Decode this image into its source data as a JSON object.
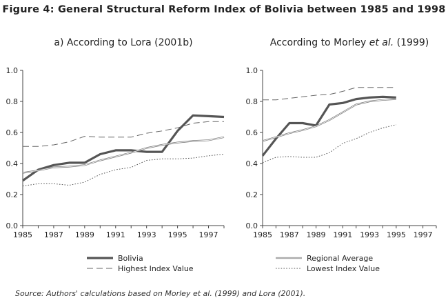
{
  "figure_title": "Figure 4: General Structural Reform Index of Bolivia between 1985 and 1998",
  "source_note": "Source: Authors' calculations based on Morley et al. (1999) and Lora (2001).",
  "chart_data": [
    {
      "type": "line",
      "title": "a) According to Lora (2001b)",
      "xlabel": "",
      "ylabel": "",
      "xlim": [
        1985,
        1998
      ],
      "ylim": [
        0.0,
        1.0
      ],
      "xticks": [
        "1985",
        "1987",
        "1989",
        "1991",
        "1993",
        "1995",
        "1997"
      ],
      "yticks": [
        "0.0",
        "0.2",
        "0.4",
        "0.6",
        "0.8",
        "1.0"
      ],
      "grid": false,
      "series": [
        {
          "name": "Bolivia",
          "style": "thick-solid",
          "x": [
            1985,
            1986,
            1987,
            1988,
            1989,
            1990,
            1991,
            1992,
            1993,
            1994,
            1995,
            1996,
            1997,
            1998
          ],
          "y": [
            0.29,
            0.36,
            0.39,
            0.405,
            0.405,
            0.46,
            0.485,
            0.485,
            0.475,
            0.475,
            0.61,
            0.71,
            0.705,
            0.7
          ]
        },
        {
          "name": "Highest Index Value",
          "style": "long-dash",
          "x": [
            1985,
            1986,
            1987,
            1988,
            1989,
            1990,
            1991,
            1992,
            1993,
            1994,
            1995,
            1996,
            1997,
            1998
          ],
          "y": [
            0.51,
            0.51,
            0.52,
            0.54,
            0.575,
            0.57,
            0.57,
            0.57,
            0.595,
            0.61,
            0.63,
            0.66,
            0.67,
            0.67
          ]
        },
        {
          "name": "Regional Average",
          "style": "double-thin",
          "x": [
            1985,
            1986,
            1987,
            1988,
            1989,
            1990,
            1991,
            1992,
            1993,
            1994,
            1995,
            1996,
            1997,
            1998
          ],
          "y": [
            0.34,
            0.355,
            0.375,
            0.38,
            0.39,
            0.42,
            0.445,
            0.47,
            0.5,
            0.52,
            0.535,
            0.545,
            0.55,
            0.57
          ]
        },
        {
          "name": "Lowest Index Value",
          "style": "dotted",
          "x": [
            1985,
            1986,
            1987,
            1988,
            1989,
            1990,
            1991,
            1992,
            1993,
            1994,
            1995,
            1996,
            1997,
            1998
          ],
          "y": [
            0.255,
            0.27,
            0.27,
            0.26,
            0.28,
            0.33,
            0.36,
            0.375,
            0.42,
            0.43,
            0.43,
            0.435,
            0.45,
            0.46
          ]
        }
      ]
    },
    {
      "type": "line",
      "title": "According to Morley et al. (1999)",
      "xlabel": "",
      "ylabel": "",
      "xlim": [
        1985,
        1998
      ],
      "ylim": [
        0.0,
        1.0
      ],
      "xticks": [
        "1985",
        "1987",
        "1989",
        "1991",
        "1993",
        "1995",
        "1997"
      ],
      "yticks": [
        "0.0",
        "0.2",
        "0.4",
        "0.6",
        "0.8",
        "1.0"
      ],
      "grid": false,
      "series": [
        {
          "name": "Bolivia",
          "style": "thick-solid",
          "x": [
            1985,
            1986,
            1987,
            1988,
            1989,
            1990,
            1991,
            1992,
            1993,
            1994,
            1995
          ],
          "y": [
            0.45,
            0.56,
            0.66,
            0.66,
            0.645,
            0.78,
            0.79,
            0.815,
            0.825,
            0.83,
            0.825
          ]
        },
        {
          "name": "Highest Index Value",
          "style": "long-dash",
          "x": [
            1985,
            1986,
            1987,
            1988,
            1989,
            1990,
            1991,
            1992,
            1993,
            1994,
            1995
          ],
          "y": [
            0.81,
            0.81,
            0.82,
            0.83,
            0.84,
            0.845,
            0.865,
            0.89,
            0.89,
            0.89,
            0.89
          ]
        },
        {
          "name": "Regional Average",
          "style": "double-thin",
          "x": [
            1985,
            1986,
            1987,
            1988,
            1989,
            1990,
            1991,
            1992,
            1993,
            1994,
            1995
          ],
          "y": [
            0.545,
            0.57,
            0.595,
            0.615,
            0.64,
            0.68,
            0.73,
            0.78,
            0.8,
            0.81,
            0.815
          ]
        },
        {
          "name": "Lowest Index Value",
          "style": "dotted",
          "x": [
            1985,
            1986,
            1987,
            1988,
            1989,
            1990,
            1991,
            1992,
            1993,
            1994,
            1995
          ],
          "y": [
            0.405,
            0.44,
            0.445,
            0.44,
            0.44,
            0.47,
            0.53,
            0.56,
            0.6,
            0.63,
            0.65
          ]
        }
      ]
    }
  ]
}
